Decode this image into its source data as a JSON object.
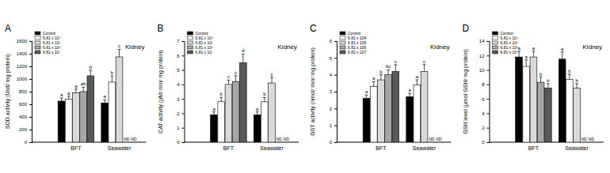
{
  "chart_data": [
    {
      "type": "bar",
      "title": "A",
      "annotation": "Kidney",
      "y_label": "SOD activity (Unit/ mg protein)",
      "categories": [
        "BFT",
        "Seawater"
      ],
      "ylim": [
        0,
        1600
      ],
      "yticks": [
        0,
        200,
        400,
        600,
        800,
        1000,
        1200,
        1400,
        1600
      ],
      "missing_label": "ND",
      "series": [
        {
          "name": "Control",
          "color": "#000000",
          "values": [
            650,
            620
          ],
          "errors": [
            50,
            50
          ],
          "letters": [
            "a",
            "a"
          ]
        },
        {
          "name": "6.81 x 10⁴",
          "color": "#ffffff",
          "values": [
            680,
            950
          ],
          "errors": [
            50,
            100
          ],
          "letters": [
            "a",
            "b"
          ]
        },
        {
          "name": "6.81 x 10⁵",
          "color": "#d9d9d9",
          "values": [
            780,
            1350
          ],
          "errors": [
            60,
            120
          ],
          "letters": [
            "a",
            "c"
          ]
        },
        {
          "name": "6.81 x 10⁶",
          "color": "#a6a6a6",
          "values": [
            800,
            null
          ],
          "errors": [
            70,
            null
          ],
          "letters": [
            "ab",
            null
          ]
        },
        {
          "name": "6.81 x 10⁷",
          "color": "#595959",
          "values": [
            1050,
            null
          ],
          "errors": [
            90,
            null
          ],
          "letters": [
            "b",
            null
          ]
        }
      ]
    },
    {
      "type": "bar",
      "title": "B",
      "annotation": "Kidney",
      "y_label": "CAT activity (μM/ min/ mg protein)",
      "categories": [
        "BFT",
        "Seawater"
      ],
      "ylim": [
        0,
        7
      ],
      "yticks": [
        0,
        1,
        2,
        3,
        4,
        5,
        6,
        7
      ],
      "missing_label": "ND",
      "series": [
        {
          "name": "Control",
          "color": "#000000",
          "values": [
            1.9,
            1.9
          ],
          "errors": [
            0.2,
            0.2
          ],
          "letters": [
            "a",
            "a"
          ]
        },
        {
          "name": "6.81 x 10⁴",
          "color": "#ffffff",
          "values": [
            2.8,
            2.8
          ],
          "errors": [
            0.3,
            0.3
          ],
          "letters": [
            "b",
            "b"
          ]
        },
        {
          "name": "6.81 x 10⁵",
          "color": "#d9d9d9",
          "values": [
            4.0,
            4.1
          ],
          "errors": [
            0.3,
            0.4
          ],
          "letters": [
            "c",
            "c"
          ]
        },
        {
          "name": "6.81 x 10⁶",
          "color": "#a6a6a6",
          "values": [
            4.2,
            null
          ],
          "errors": [
            0.4,
            null
          ],
          "letters": [
            "c",
            null
          ]
        },
        {
          "name": "6.81 x 10⁷",
          "color": "#595959",
          "values": [
            5.5,
            null
          ],
          "errors": [
            0.6,
            null
          ],
          "letters": [
            "d",
            null
          ]
        }
      ]
    },
    {
      "type": "bar",
      "title": "C",
      "annotation": "Kidney",
      "y_label": "GST activity (nmol/ min/ mg protein)",
      "categories": [
        "BFT",
        "Seawater"
      ],
      "ylim": [
        0,
        6
      ],
      "yticks": [
        0,
        1,
        2,
        3,
        4,
        5,
        6
      ],
      "missing_label": "ND",
      "series": [
        {
          "name": "Control",
          "color": "#000000",
          "values": [
            2.6,
            2.7
          ],
          "errors": [
            0.2,
            0.2
          ],
          "letters": [
            "a",
            "a"
          ]
        },
        {
          "name": "6.81 x 104",
          "color": "#ffffff",
          "values": [
            3.3,
            3.4
          ],
          "errors": [
            0.3,
            0.3
          ],
          "letters": [
            "a",
            "a"
          ]
        },
        {
          "name": "6.81 x 105",
          "color": "#d9d9d9",
          "values": [
            3.7,
            4.2
          ],
          "errors": [
            0.3,
            0.4
          ],
          "letters": [
            "b",
            "c"
          ]
        },
        {
          "name": "6.81 x 106",
          "color": "#a6a6a6",
          "values": [
            4.0,
            null
          ],
          "errors": [
            0.3,
            null
          ],
          "letters": [
            "bc",
            null
          ]
        },
        {
          "name": "6.81 x 107",
          "color": "#595959",
          "values": [
            4.2,
            null
          ],
          "errors": [
            0.4,
            null
          ],
          "letters": [
            "c",
            null
          ]
        }
      ]
    },
    {
      "type": "bar",
      "title": "D",
      "annotation": "Kidney",
      "y_label": "GSH level (μmol GSH/ mg protein)",
      "categories": [
        "BFT",
        "Seawater"
      ],
      "ylim": [
        0,
        14
      ],
      "yticks": [
        0,
        2,
        4,
        6,
        8,
        10,
        12,
        14
      ],
      "missing_label": "ND",
      "series": [
        {
          "name": "Control",
          "color": "#000000",
          "values": [
            11.8,
            11.5
          ],
          "errors": [
            0.8,
            1.0
          ],
          "letters": [
            "a",
            "a"
          ]
        },
        {
          "name": "6.81 x 10⁴",
          "color": "#ffffff",
          "values": [
            10.5,
            8.7
          ],
          "errors": [
            0.9,
            0.7
          ],
          "letters": [
            "a",
            "b"
          ]
        },
        {
          "name": "6.81 x 10⁵",
          "color": "#d9d9d9",
          "values": [
            11.8,
            7.5
          ],
          "errors": [
            0.8,
            0.6
          ],
          "letters": [
            "a",
            "b"
          ]
        },
        {
          "name": "6.81 x 10⁶",
          "color": "#a6a6a6",
          "values": [
            8.3,
            null
          ],
          "errors": [
            0.7,
            null
          ],
          "letters": [
            "b",
            null
          ]
        },
        {
          "name": "6.81 x 10⁷",
          "color": "#595959",
          "values": [
            7.5,
            null
          ],
          "errors": [
            0.6,
            null
          ],
          "letters": [
            "b",
            null
          ]
        }
      ]
    }
  ]
}
